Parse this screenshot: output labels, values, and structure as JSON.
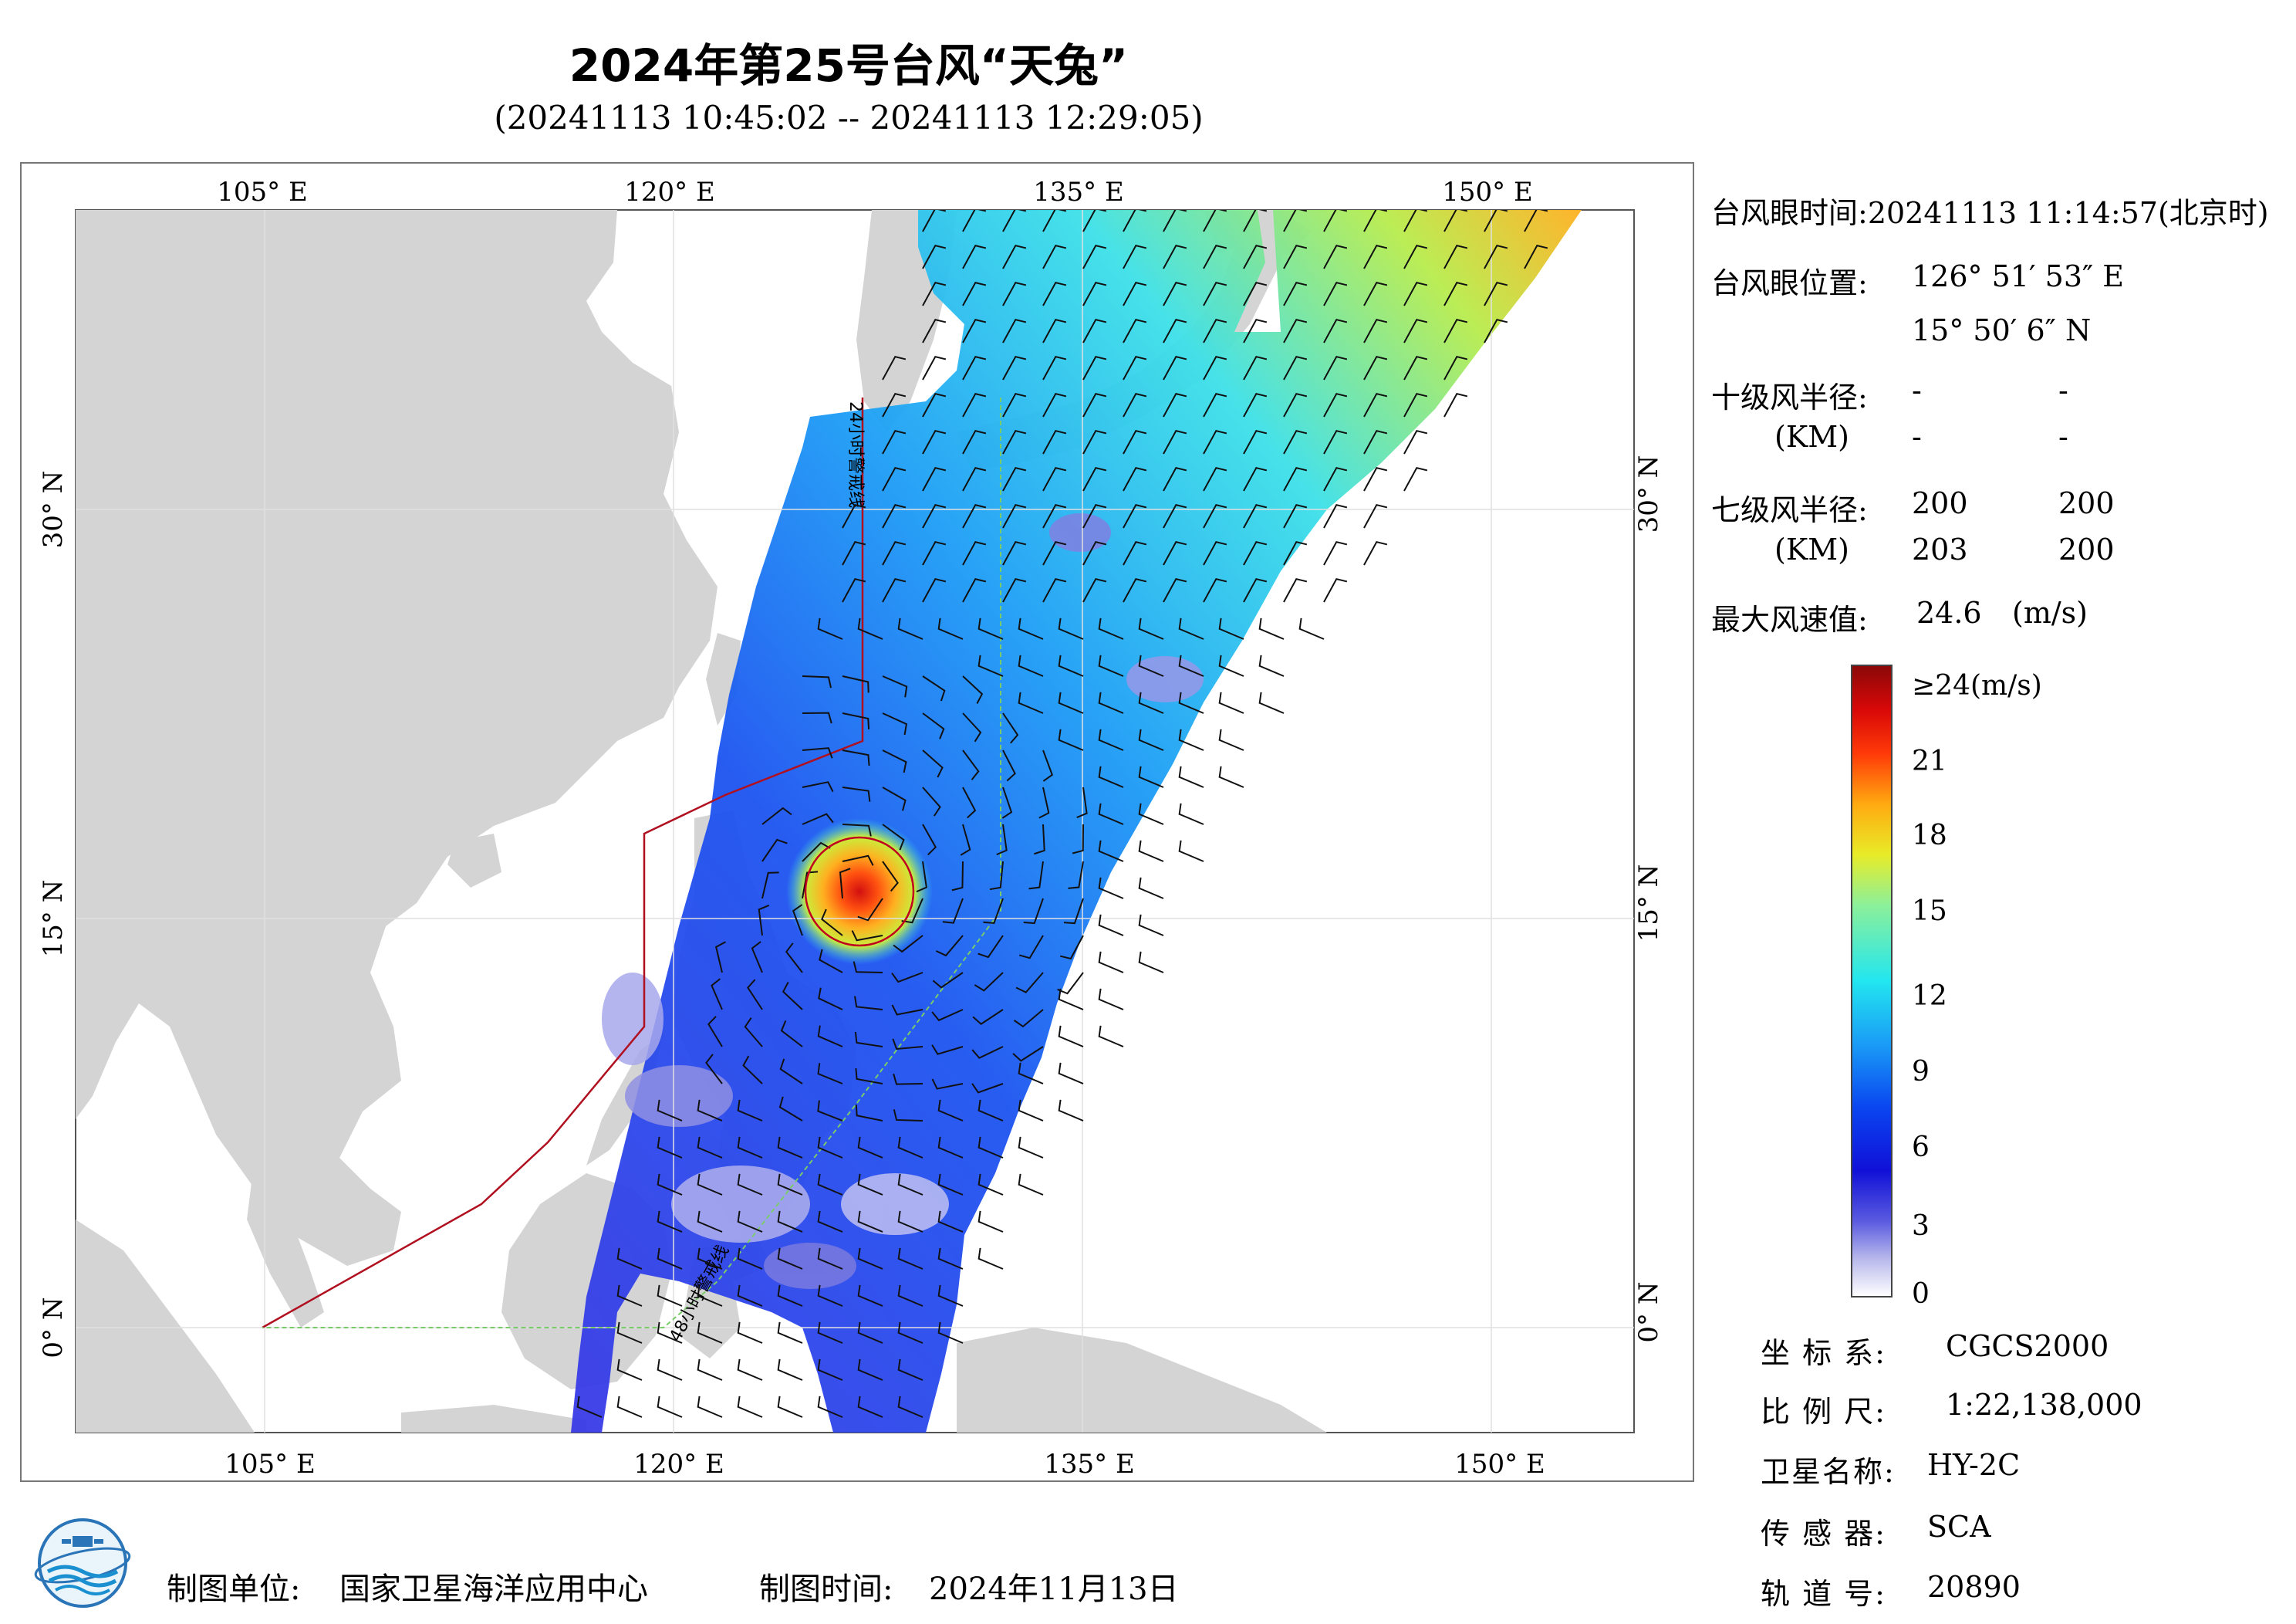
{
  "title": "2024年第25号台风“天兔”",
  "subtitle": "(20241113 10:45:02 -- 20241113 12:29:05)",
  "map": {
    "lon_ticks": [
      "105° E",
      "120° E",
      "135° E",
      "150° E"
    ],
    "lat_ticks": [
      "30° N",
      "15° N",
      "0° N"
    ],
    "line_label_24h": "24小时警戒线",
    "line_label_48h": "48小时警戒线",
    "colors": {
      "land": "#d4d4d4",
      "sea": "#ffffff",
      "warning_24h": "#b01020",
      "warning_48h": "#7acc6a",
      "circle": "#c00020"
    },
    "typhoon_eye_icon": "circle-marker"
  },
  "info": {
    "eye_time_label": "台风眼时间:",
    "eye_time_value": "20241113 11:14:57(北京时)",
    "eye_pos_label": "台风眼位置:",
    "eye_lon": "126° 51′ 53″ E",
    "eye_lat": "15° 50′ 6″ N",
    "r10_label": "十级风半径:",
    "r10_unit": "(KM)",
    "r10_values": [
      "-",
      "-",
      "-",
      "-"
    ],
    "r7_label": "七级风半径:",
    "r7_unit": "(KM)",
    "r7_values": [
      "200",
      "200",
      "203",
      "200"
    ],
    "max_wind_label": "最大风速值:",
    "max_wind_value": "24.6",
    "max_wind_unit": "(m/s)"
  },
  "colorbar": {
    "labels": [
      "≥24(m/s)",
      "21",
      "18",
      "15",
      "12",
      "9",
      "6",
      "3",
      "0"
    ],
    "stops": [
      "#ffffff",
      "#b8b8ec",
      "#5a5ae0",
      "#1010d8",
      "#0a46f0",
      "#1a9cf6",
      "#22e6f0",
      "#8cf09a",
      "#e8ec28",
      "#ffaa10",
      "#ff3a08",
      "#d80808",
      "#8a0808"
    ]
  },
  "meta": {
    "coord_label": "坐 标 系:",
    "coord_value": "CGCS2000",
    "scale_label": "比 例 尺:",
    "scale_value": "1:22,138,000",
    "sat_label": "卫星名称:",
    "sat_value": "HY-2C",
    "sensor_label": "传 感 器:",
    "sensor_value": "SCA",
    "orbit_label": "轨 道 号:",
    "orbit_value": "20890"
  },
  "footer": {
    "unit_label": "制图单位:",
    "unit_value": "国家卫星海洋应用中心",
    "time_label": "制图时间:",
    "time_value": "2024年11月13日"
  }
}
